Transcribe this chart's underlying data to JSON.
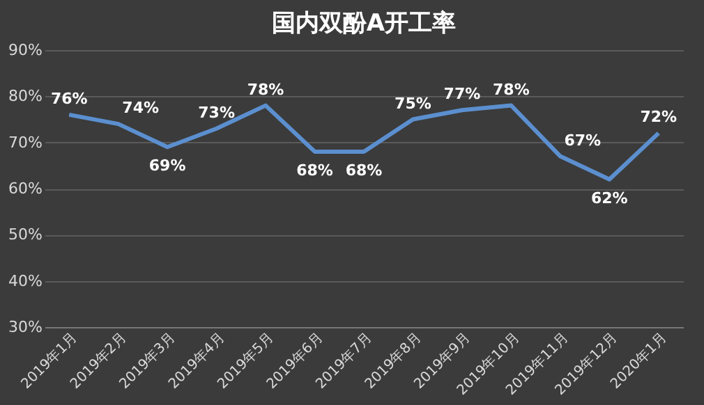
{
  "chart_data": {
    "type": "line",
    "title": "国内双酚A开工率",
    "categories": [
      "2019年1月",
      "2019年2月",
      "2019年3月",
      "2019年4月",
      "2019年5月",
      "2019年6月",
      "2019年7月",
      "2019年8月",
      "2019年9月",
      "2019年10月",
      "2019年11月",
      "2019年12月",
      "2020年1月"
    ],
    "series": [
      {
        "color": "#5b8fcf",
        "values": [
          76,
          74,
          69,
          73,
          78,
          68,
          68,
          75,
          77,
          78,
          67,
          62,
          72
        ],
        "value_labels": [
          "76%",
          "74%",
          "69%",
          "73%",
          "78%",
          "68%",
          "68%",
          "75%",
          "77%",
          "78%",
          "67%",
          "62%",
          "72%"
        ]
      }
    ],
    "ylim": [
      30,
      90
    ],
    "yticks": [
      {
        "value": 30,
        "label": "30%"
      },
      {
        "value": 40,
        "label": "40%"
      },
      {
        "value": 50,
        "label": "50%"
      },
      {
        "value": 60,
        "label": "60%"
      },
      {
        "value": 70,
        "label": "70%"
      },
      {
        "value": 80,
        "label": "80%"
      },
      {
        "value": 90,
        "label": "90%"
      }
    ],
    "grid": "y",
    "marker": "none",
    "line_style": "solid"
  }
}
